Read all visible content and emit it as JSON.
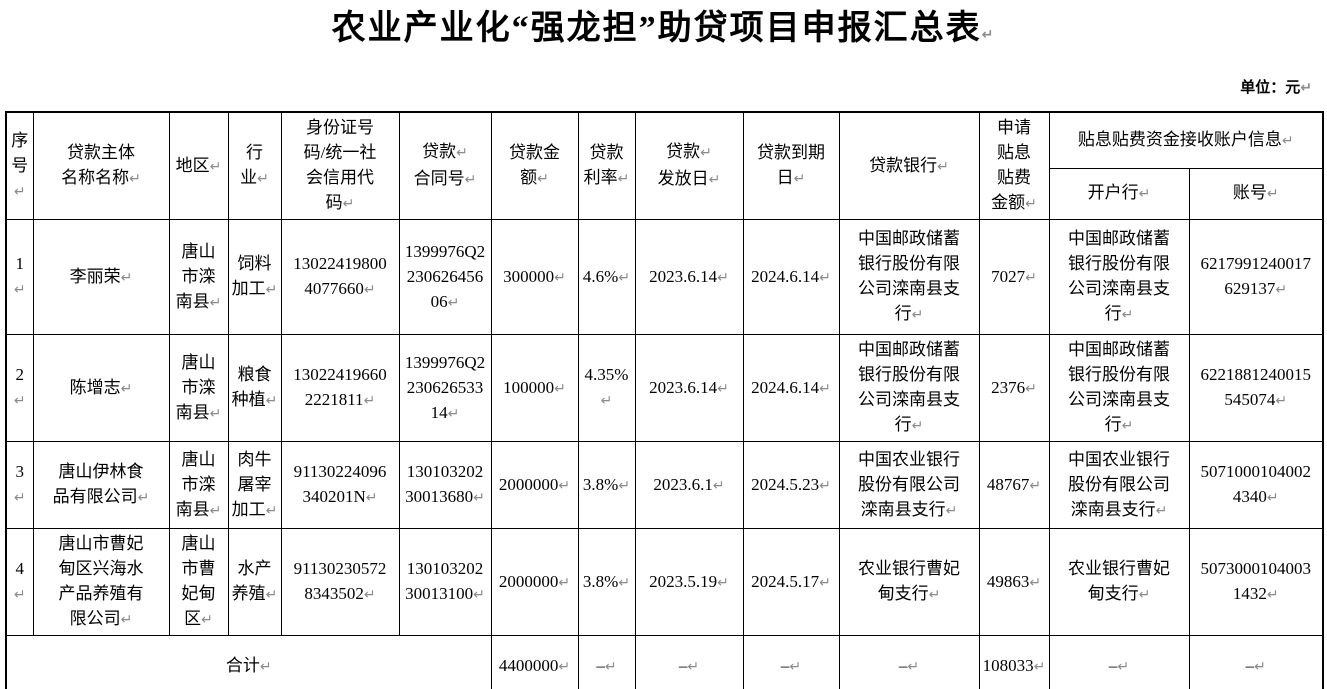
{
  "doc": {
    "title": "农业产业化“强龙担”助贷项目申报汇总表",
    "unit_label": "单位：元",
    "line_break_mark": "↵"
  },
  "header": {
    "no": "序\n号",
    "name": "贷款主体\n名称名称",
    "region": "地区",
    "industry": "行\n业",
    "id_code": "身份证号\n码/统一社\n会信用代\n码",
    "contract_no_line1": "贷款",
    "contract_no_line2": "合同号",
    "amount": "贷款金\n额",
    "rate": "贷款\n利率",
    "issue_date_line1": "贷款",
    "issue_date_line2": "发放日",
    "due_date": "贷款到期\n日",
    "bank": "贷款银行",
    "subsidy": "申请\n贴息\n贴费\n金额",
    "account_group": "贴息贴费资金接收账户信息",
    "account_bank": "开户行",
    "account_no": "账号"
  },
  "table": {
    "column_keys": [
      "no",
      "name",
      "region",
      "industry",
      "id_code",
      "contract_no",
      "amount",
      "rate",
      "issue_date",
      "due_date",
      "bank",
      "subsidy",
      "account_bank",
      "account_no"
    ],
    "rows": [
      {
        "no": "1",
        "name": "李丽荣",
        "region": "唐山\n市滦\n南县",
        "industry": "饲料\n加工",
        "id_code": "13022419800\n4077660",
        "contract_no": "1399976Q2\n230626456\n06",
        "amount": "300000",
        "rate": "4.6%",
        "issue_date": "2023.6.14",
        "due_date": "2024.6.14",
        "bank": "中国邮政储蓄\n银行股份有限\n公司滦南县支\n行",
        "subsidy": "7027",
        "account_bank": "中国邮政储蓄\n银行股份有限\n公司滦南县支\n行",
        "account_no": "6217991240017\n629137"
      },
      {
        "no": "2",
        "name": "陈增志",
        "region": "唐山\n市滦\n南县",
        "industry": "粮食\n种植",
        "id_code": "13022419660\n2221811",
        "contract_no": "1399976Q2\n230626533\n14",
        "amount": "100000",
        "rate": "4.35%",
        "issue_date": "2023.6.14",
        "due_date": "2024.6.14",
        "bank": "中国邮政储蓄\n银行股份有限\n公司滦南县支\n行",
        "subsidy": "2376",
        "account_bank": "中国邮政储蓄\n银行股份有限\n公司滦南县支\n行",
        "account_no": "6221881240015\n545074"
      },
      {
        "no": "3",
        "name": "唐山伊林食\n品有限公司",
        "region": "唐山\n市滦\n南县",
        "industry": "肉牛\n屠宰\n加工",
        "id_code": "91130224096\n340201N",
        "contract_no": "130103202\n30013680",
        "amount": "2000000",
        "rate": "3.8%",
        "issue_date": "2023.6.1",
        "due_date": "2024.5.23",
        "bank": "中国农业银行\n股份有限公司\n滦南县支行",
        "subsidy": "48767",
        "account_bank": "中国农业银行\n股份有限公司\n滦南县支行",
        "account_no": "5071000104002\n4340"
      },
      {
        "no": "4",
        "name": "唐山市曹妃\n甸区兴海水\n产品养殖有\n限公司",
        "region": "唐山\n市曹\n妃甸\n区",
        "industry": "水产\n养殖",
        "id_code": "91130230572\n8343502",
        "contract_no": "130103202\n30013100",
        "amount": "2000000",
        "rate": "3.8%",
        "issue_date": "2023.5.19",
        "due_date": "2024.5.17",
        "bank": "农业银行曹妃\n甸支行",
        "subsidy": "49863",
        "account_bank": "农业银行曹妃\n甸支行",
        "account_no": "5073000104003\n1432"
      }
    ],
    "total": {
      "label": "合计",
      "amount": "4400000",
      "rate": "–",
      "issue_date": "–",
      "due_date": "–",
      "bank": "–",
      "subsidy": "108033",
      "account_bank": "–",
      "account_no": "–"
    }
  }
}
